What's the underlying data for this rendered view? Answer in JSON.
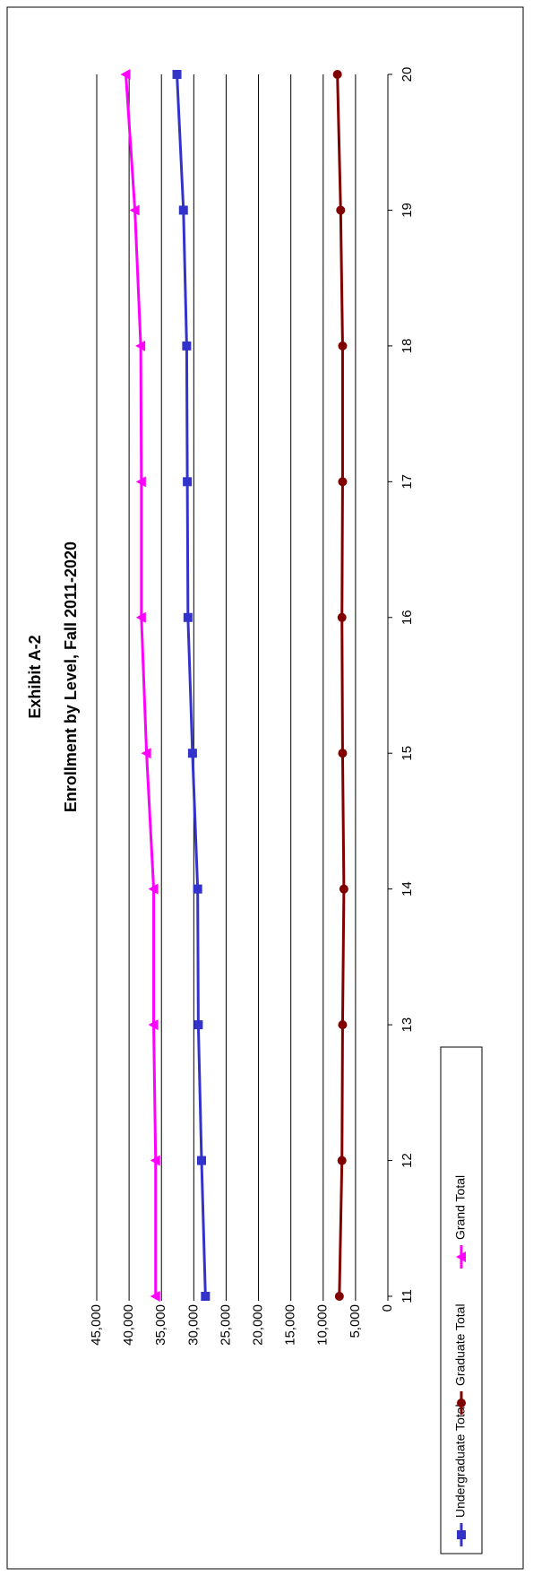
{
  "chart_data": {
    "type": "line",
    "title": "Exhibit A-2",
    "subtitle": "Enrollment by Level, Fall 2011-2020",
    "xlabel": "",
    "ylabel": "",
    "x": [
      11,
      12,
      13,
      14,
      15,
      16,
      17,
      18,
      19,
      20
    ],
    "x_tick_labels": [
      "11",
      "12",
      "13",
      "14",
      "15",
      "16",
      "17",
      "18",
      "19",
      "20"
    ],
    "ylim": [
      0,
      45000
    ],
    "y_ticks": [
      0,
      5000,
      10000,
      15000,
      20000,
      25000,
      30000,
      35000,
      40000,
      45000
    ],
    "y_tick_labels": [
      "0",
      "5,000",
      "10,000",
      "15,000",
      "20,000",
      "25,000",
      "30,000",
      "35,000",
      "40,000",
      "45,000"
    ],
    "grid": "horizontal",
    "orientation": "rotated 90° clockwise",
    "legend_position": "bottom",
    "series": [
      {
        "name": "Undergraduate Total",
        "color": "#3333cc",
        "marker": "square",
        "values": [
          28200,
          28800,
          29300,
          29400,
          30200,
          30900,
          31000,
          31100,
          31600,
          32600
        ]
      },
      {
        "name": "Graduate Total",
        "color": "#800000",
        "marker": "circle",
        "values": [
          7500,
          7100,
          7000,
          6800,
          7000,
          7100,
          7000,
          7000,
          7300,
          7800
        ]
      },
      {
        "name": "Grand Total",
        "color": "#ff00ff",
        "marker": "triangle",
        "values": [
          35900,
          35900,
          36200,
          36200,
          37300,
          38100,
          38100,
          38200,
          39100,
          40500
        ]
      }
    ]
  }
}
